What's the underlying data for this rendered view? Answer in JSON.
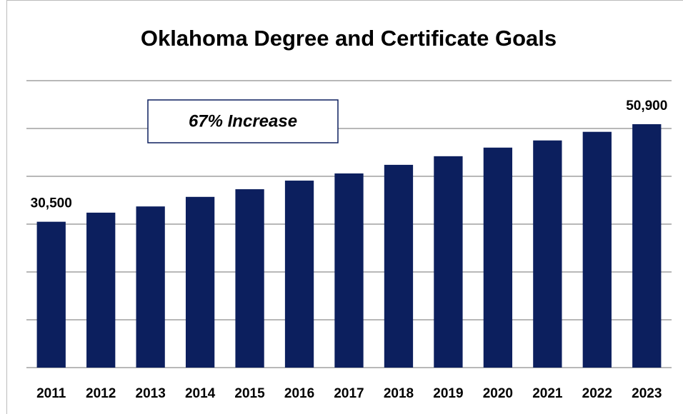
{
  "chart_data": {
    "type": "bar",
    "title": "Oklahoma Degree and Certificate Goals",
    "categories": [
      "2011",
      "2012",
      "2013",
      "2014",
      "2015",
      "2016",
      "2017",
      "2018",
      "2019",
      "2020",
      "2021",
      "2022",
      "2023"
    ],
    "values": [
      30500,
      32400,
      33700,
      35700,
      37300,
      39100,
      40600,
      42400,
      44200,
      46000,
      47500,
      49300,
      50900
    ],
    "value_labels": [
      "30,500",
      null,
      null,
      null,
      null,
      null,
      null,
      null,
      null,
      null,
      null,
      null,
      "50,900"
    ],
    "color": "#0c1f5e",
    "ylim": [
      0,
      60000
    ],
    "yticks": [
      0,
      10000,
      20000,
      30000,
      40000,
      50000,
      60000
    ],
    "grid": true,
    "annotation": "67% Increase"
  }
}
